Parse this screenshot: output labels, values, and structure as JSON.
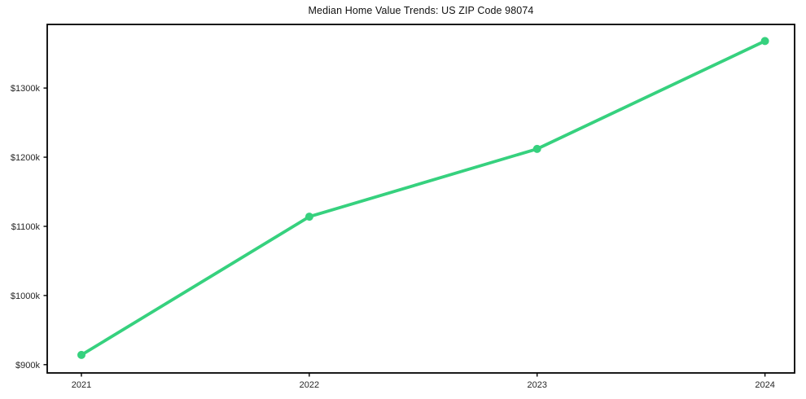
{
  "chart_data": {
    "type": "line",
    "title": "Median Home Value Trends: US ZIP Code 98074",
    "x": [
      2021,
      2022,
      2023,
      2024
    ],
    "series": [
      {
        "name": "median-home-value",
        "values": [
          914,
          1114,
          1212,
          1368
        ],
        "unit": "USD thousands",
        "color": "#36d17e",
        "marker": "circle"
      }
    ],
    "xticks": {
      "values": [
        2021,
        2022,
        2023,
        2024
      ],
      "labels": [
        "2021",
        "2022",
        "2023",
        "2024"
      ]
    },
    "yticks": {
      "values": [
        900,
        1000,
        1100,
        1200,
        1300
      ],
      "labels": [
        "$900k",
        "$1000k",
        "$1100k",
        "$1200k",
        "$1300k"
      ]
    },
    "xlim": [
      2020.85,
      2024.13
    ],
    "ylim": [
      888,
      1392
    ],
    "grid": false,
    "legend_visible": false,
    "colors": {
      "line": "#36d17e",
      "text": "#262626",
      "axis": "#000000",
      "background": "#ffffff"
    }
  }
}
